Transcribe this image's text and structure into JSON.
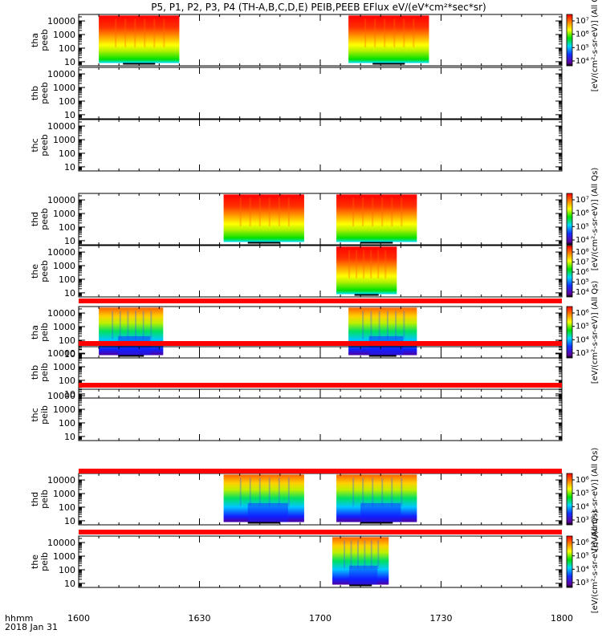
{
  "chart_data": {
    "type": "heatmap",
    "title": "P5, P1, P2, P3, P4 (TH-A,B,C,D,E) PEIB,PEEB EFlux eV/(eV*cm²*sec*sr)",
    "x_axis": {
      "ticks": [
        "1600",
        "1630",
        "1700",
        "1730",
        "1800"
      ],
      "range_minutes": [
        0,
        120
      ],
      "label_line1": "hhmm",
      "label_line2": "2018 Jan 31"
    },
    "y_axis": {
      "scale": "log",
      "ticks": [
        "10",
        "100",
        "1000",
        "10000"
      ],
      "range": [
        5,
        30000
      ]
    },
    "panels": [
      {
        "label_top": "tha",
        "label_bottom": "peeb",
        "species": "electron",
        "intervals": [
          [
            5,
            25
          ],
          [
            67,
            87
          ]
        ],
        "cbar": "e7",
        "has_data": true
      },
      {
        "label_top": "thb",
        "label_bottom": "peeb",
        "species": "electron",
        "intervals": [],
        "cbar": "none",
        "has_data": false
      },
      {
        "label_top": "thc",
        "label_bottom": "peeb",
        "species": "electron",
        "intervals": [],
        "cbar": "none",
        "has_data": false
      },
      {
        "label_top": "thd",
        "label_bottom": "peeb",
        "species": "electron",
        "intervals": [
          [
            36,
            56
          ],
          [
            64,
            84
          ]
        ],
        "cbar": "e7",
        "has_data": true
      },
      {
        "label_top": "the",
        "label_bottom": "peeb",
        "species": "electron",
        "intervals": [
          [
            64,
            79
          ]
        ],
        "cbar": "e8",
        "has_data": true
      },
      {
        "label_top": "tha",
        "label_bottom": "peib",
        "species": "ion",
        "intervals": [
          [
            5,
            21
          ],
          [
            67,
            84
          ]
        ],
        "cbar": "i6a",
        "has_data": true
      },
      {
        "label_top": "thb",
        "label_bottom": "peib",
        "species": "ion",
        "intervals": [],
        "cbar": "none",
        "has_data": false
      },
      {
        "label_top": "thc",
        "label_bottom": "peib",
        "species": "ion",
        "intervals": [],
        "cbar": "none",
        "has_data": false
      },
      {
        "label_top": "thd",
        "label_bottom": "peib",
        "species": "ion",
        "intervals": [
          [
            36,
            56
          ],
          [
            64,
            84
          ]
        ],
        "cbar": "i6b",
        "has_data": true
      },
      {
        "label_top": "the",
        "label_bottom": "peib",
        "species": "ion",
        "intervals": [
          [
            63,
            77
          ]
        ],
        "cbar": "i6c",
        "has_data": true
      }
    ],
    "colorbars": {
      "e7": {
        "ticks": [
          "10⁴",
          "10⁵",
          "10⁶",
          "10⁷"
        ],
        "label": "[eV/(cm²-s-sr-eV)] (All Qs)"
      },
      "e8": {
        "ticks": [
          "10⁴",
          "10⁵",
          "10⁶",
          "10⁷",
          "10⁸"
        ],
        "label": ""
      },
      "i6a": {
        "ticks": [
          "10³",
          "10⁴",
          "10⁵",
          "10⁶"
        ],
        "label": "[eV/(cm²-s-sr-eV)] (All Qs)"
      },
      "i6b": {
        "ticks": [
          "10³",
          "10⁴",
          "10⁵",
          "10⁶"
        ],
        "label": "[eV/(cm²-s-sr-eV)] (All Qs)"
      },
      "i6c": {
        "ticks": [
          "10³",
          "10⁴",
          "10⁵",
          "10⁶"
        ],
        "label": "[eV/(cm²-s-sr-eV)] (All Qs)"
      }
    },
    "colors": {
      "red": "#ff0000",
      "orange": "#ff8c00",
      "yellow": "#ffff00",
      "green": "#00e000",
      "cyan": "#00d8ff",
      "blue": "#1030ff",
      "purple": "#6000a0",
      "separator": "#ff0000"
    }
  }
}
